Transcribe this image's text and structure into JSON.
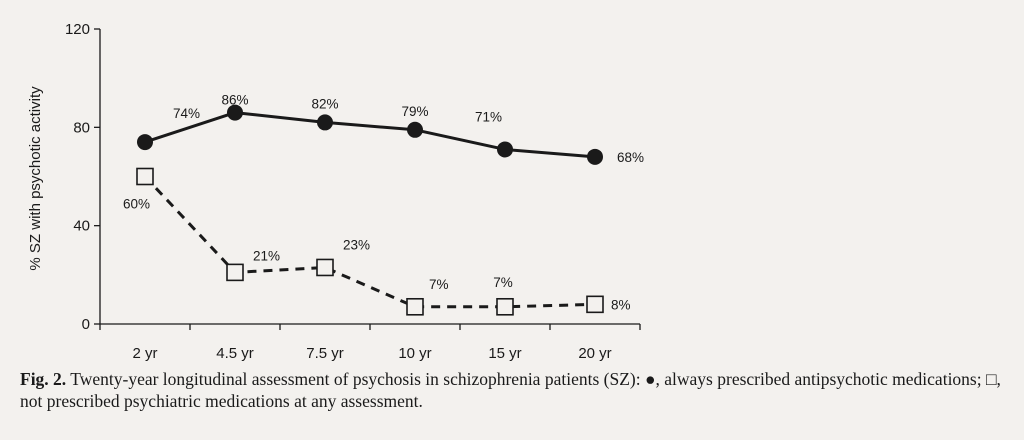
{
  "chart_data": {
    "type": "line",
    "categories": [
      "2 yr",
      "4.5 yr",
      "7.5 yr",
      "10 yr",
      "15 yr",
      "20 yr"
    ],
    "ylabel": "% SZ with psychotic activity",
    "ylim": [
      0,
      120
    ],
    "yticks": [
      "0",
      "40",
      "80",
      "120"
    ],
    "grid": false,
    "series": [
      {
        "values": [
          74,
          86,
          82,
          79,
          71,
          68
        ],
        "labels": [
          "74%",
          "86%",
          "82%",
          "79%",
          "71%",
          "68%"
        ],
        "marker": "filled-circle",
        "line_style": "solid",
        "color": "#1a1a1a"
      },
      {
        "values": [
          60,
          21,
          23,
          7,
          7,
          8
        ],
        "labels": [
          "60%",
          "21%",
          "23%",
          "7%",
          "7%",
          "8%"
        ],
        "marker": "open-square",
        "line_style": "dashed",
        "color": "#1a1a1a"
      }
    ]
  },
  "caption": {
    "lead": "Fig. 2.",
    "text": "Twenty-year longitudinal assessment of psychosis in schizophrenia patients (SZ): ●, always prescribed antipsychotic medications; □, not prescribed psychiatric medications at any assessment."
  }
}
